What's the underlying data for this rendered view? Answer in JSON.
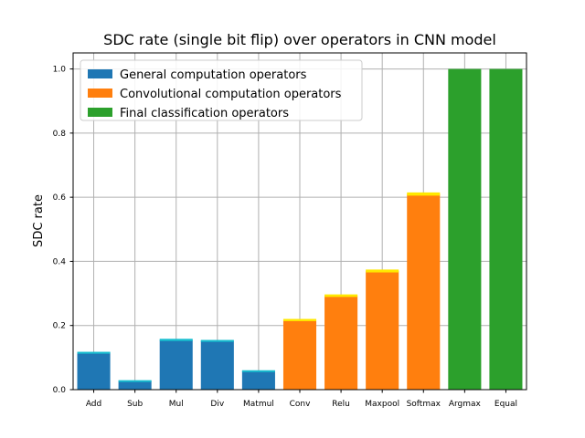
{
  "chart_data": {
    "type": "bar",
    "title": "SDC rate (single bit flip) over operators in CNN model",
    "xlabel": "",
    "ylabel": "SDC rate",
    "ylim": [
      0,
      1.05
    ],
    "yticks": [
      "0.0",
      "0.2",
      "0.4",
      "0.6",
      "0.8",
      "1.0"
    ],
    "grid": true,
    "legend_position": "top-left",
    "categories": [
      "Add",
      "Sub",
      "Mul",
      "Div",
      "Matmul",
      "Conv",
      "Relu",
      "Maxpool",
      "Softmax",
      "Argmax",
      "Equal"
    ],
    "values": [
      0.115,
      0.028,
      0.155,
      0.152,
      0.058,
      0.217,
      0.293,
      0.37,
      0.61,
      1.0,
      1.0
    ],
    "error_margins": [
      0.006,
      0.003,
      0.007,
      0.006,
      0.005,
      0.007,
      0.008,
      0.009,
      0.01,
      0.0,
      0.0
    ],
    "groups": [
      0,
      0,
      0,
      0,
      0,
      1,
      1,
      1,
      1,
      2,
      2
    ],
    "series": [
      {
        "name": "General computation operators",
        "color": "#1f77b4",
        "error_color": "#17becf"
      },
      {
        "name": "Convolutional computation operators",
        "color": "#ff7f0e",
        "error_color": "#ffe800"
      },
      {
        "name": "Final classification operators",
        "color": "#2ca02c",
        "error_color": "#2ca02c"
      }
    ]
  }
}
